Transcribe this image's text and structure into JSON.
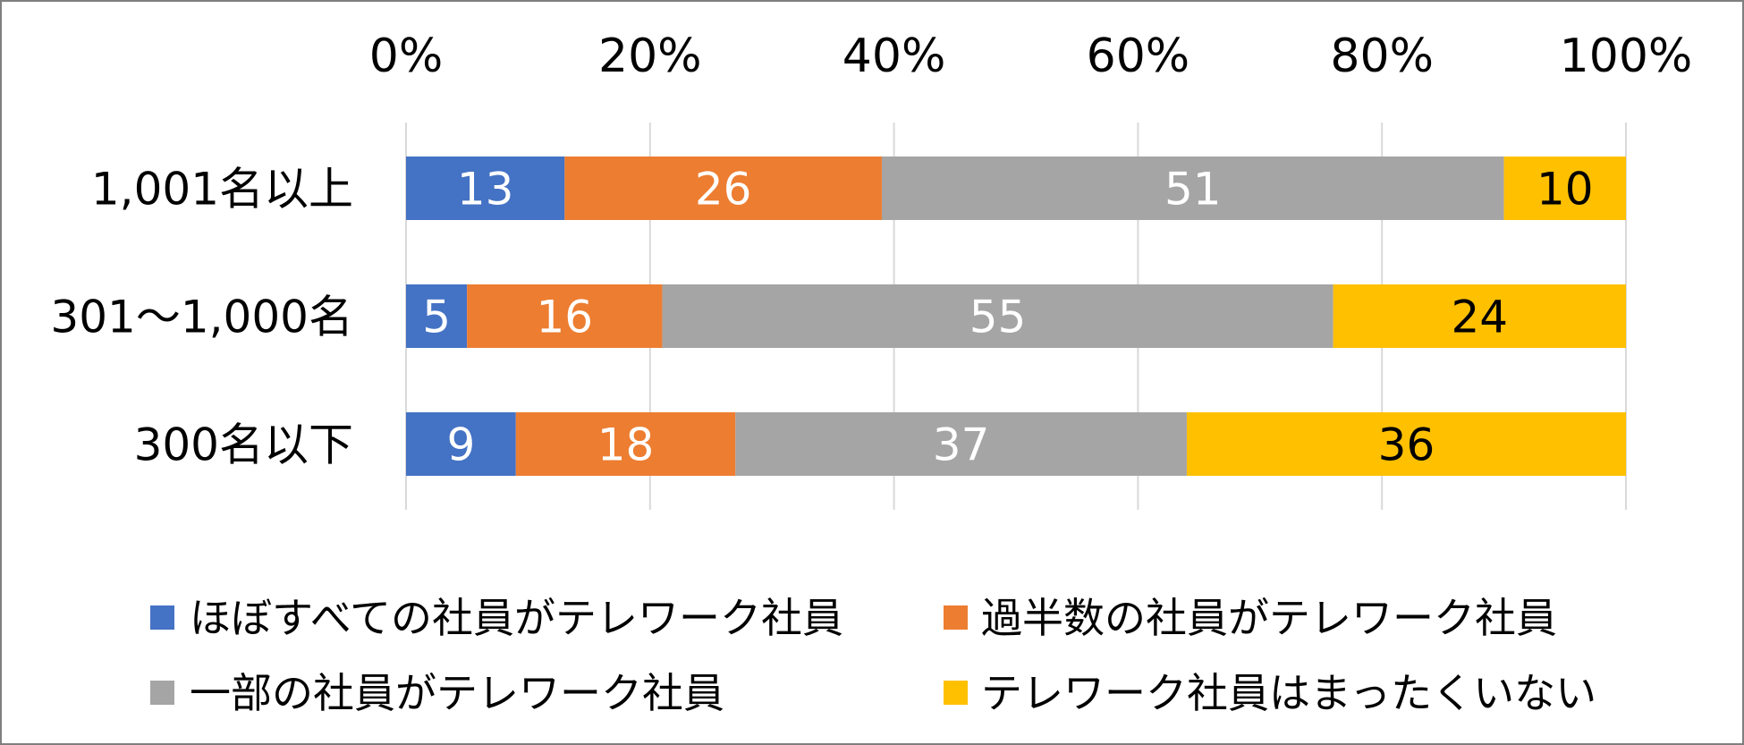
{
  "chart_data": {
    "type": "bar",
    "orientation": "horizontal",
    "stacked": "percent",
    "categories": [
      "1,001名以上",
      "301～1,000名",
      "300名以下"
    ],
    "series": [
      {
        "name": "ほぼすべての社員がテレワーク社員",
        "values": [
          13,
          5,
          9
        ],
        "color": "#4472C4",
        "label_color": "#FFFFFF"
      },
      {
        "name": "過半数の社員がテレワーク社員",
        "values": [
          26,
          16,
          18
        ],
        "color": "#ED7D31",
        "label_color": "#FFFFFF"
      },
      {
        "name": "一部の社員がテレワーク社員",
        "values": [
          51,
          55,
          37
        ],
        "color": "#A5A5A5",
        "label_color": "#FFFFFF"
      },
      {
        "name": "テレワーク社員はまったくいない",
        "values": [
          10,
          24,
          36
        ],
        "color": "#FFC000",
        "label_color": "#000000"
      }
    ],
    "xlim": [
      0,
      100
    ],
    "x_tick_values": [
      0,
      20,
      40,
      60,
      80,
      100
    ],
    "xticks": [
      "0%",
      "20%",
      "40%",
      "60%",
      "80%",
      "100%"
    ],
    "x_axis_position": "top",
    "grid": true,
    "legend_position": "bottom"
  }
}
